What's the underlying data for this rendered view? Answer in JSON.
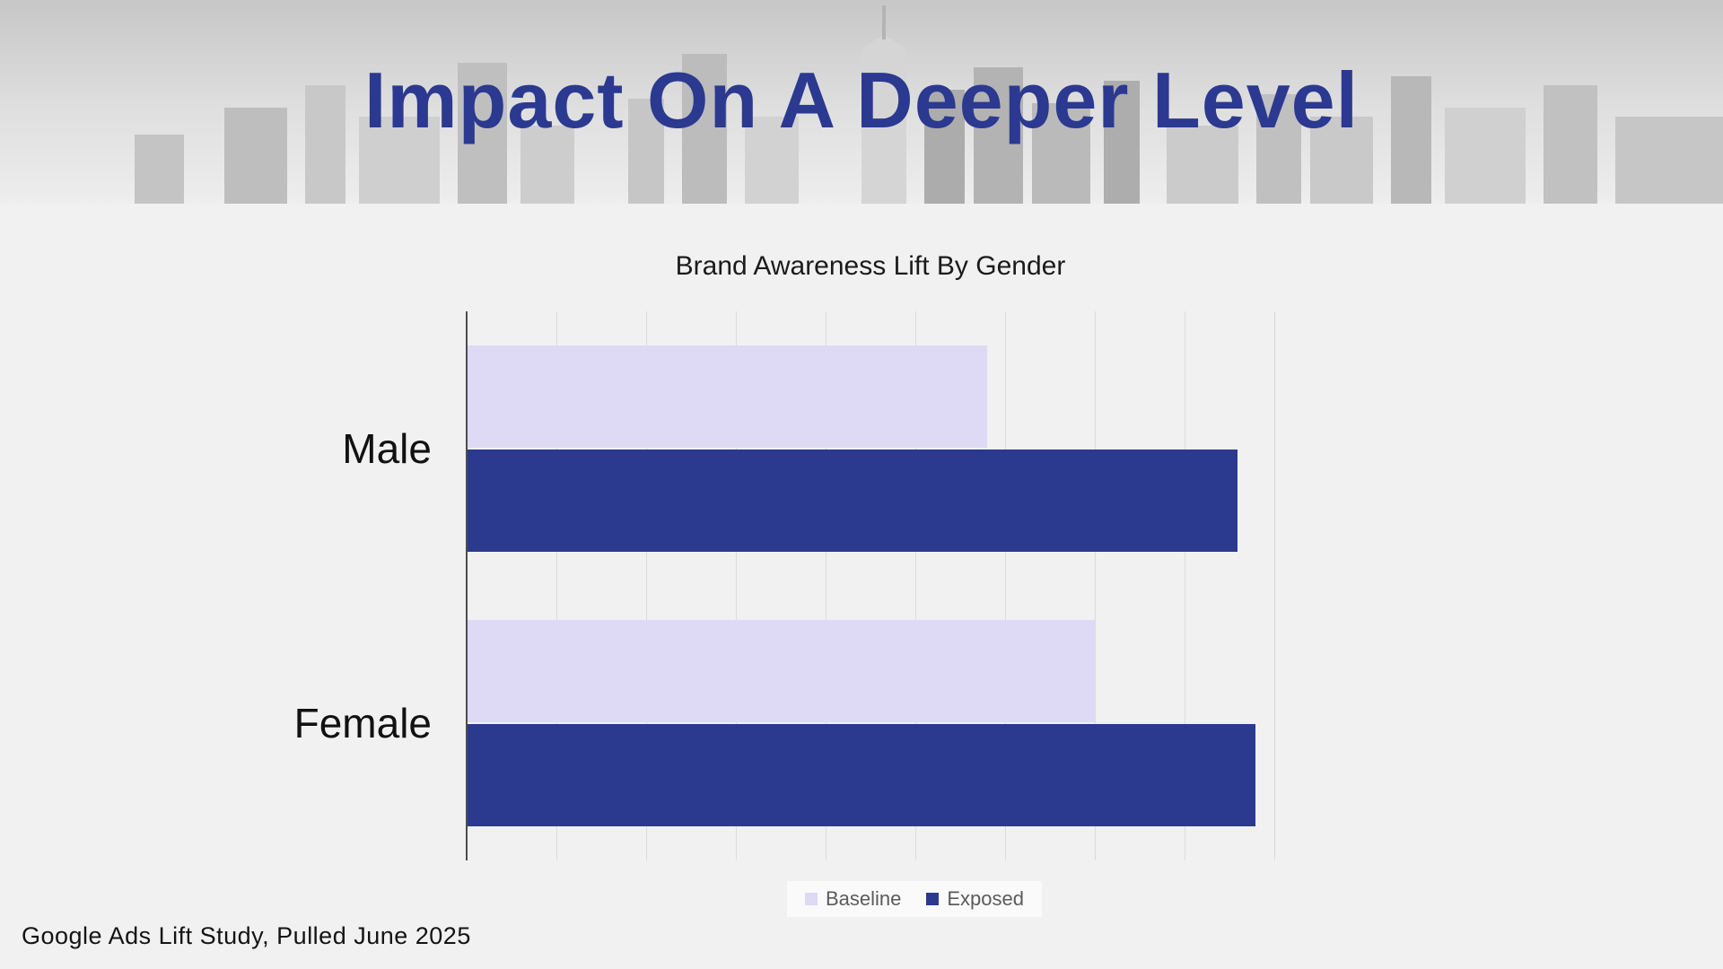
{
  "header": {
    "title": "Impact On A Deeper Level"
  },
  "footer": {
    "source": "Google Ads Lift Study, Pulled June 2025"
  },
  "colors": {
    "title_navy": "#2b3990",
    "baseline_bar": "#ded9f4",
    "exposed_bar": "#2b3a8f",
    "slide_background": "#f1f1f2",
    "gridline": "#dcdcdc"
  },
  "chart_data": {
    "type": "bar",
    "orientation": "horizontal",
    "title": "Brand Awareness Lift By Gender",
    "categories": [
      "Male",
      "Female"
    ],
    "series": [
      {
        "name": "Baseline",
        "color": "#ded9f4",
        "values": [
          58,
          70
        ]
      },
      {
        "name": "Exposed",
        "color": "#2b3a8f",
        "values": [
          86,
          88
        ]
      }
    ],
    "xlim": [
      0,
      100
    ],
    "grid": true,
    "gridline_step": 10,
    "legend_position": "bottom",
    "x_tick_labels_visible": false
  }
}
